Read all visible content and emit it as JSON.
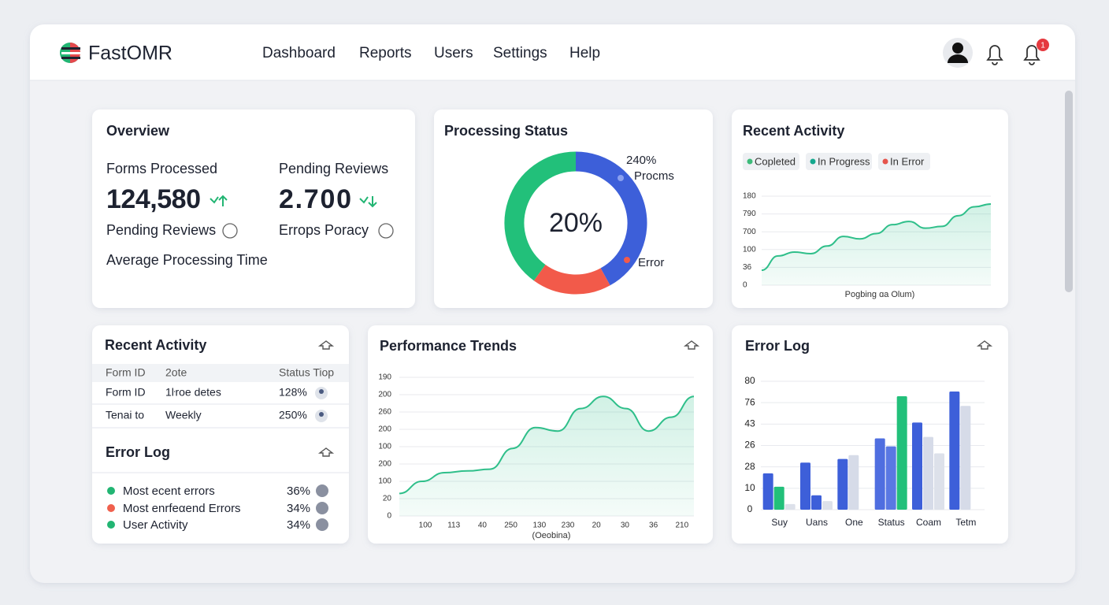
{
  "header": {
    "brand": "FastOMR",
    "nav": [
      "Dashboard",
      "Reports",
      "Users",
      "Settings",
      "Help"
    ],
    "notification_count": "1"
  },
  "overview": {
    "title": "Overview",
    "stats": [
      {
        "label": "Forms Processed",
        "value": "124,580",
        "sub": "Pending Reviews"
      },
      {
        "label": "Pending Reviews",
        "value": "2.700",
        "sub": "Errops Poracy"
      }
    ],
    "footer": "Average Processing Time"
  },
  "processing_status": {
    "title": "Processing Status",
    "center_label": "20%",
    "callouts": [
      "240%",
      "Procms",
      "Error"
    ],
    "chart_data": {
      "type": "donut",
      "values": [
        42,
        18,
        40
      ],
      "colors": [
        "#3d5fd9",
        "#f25a4a",
        "#22c07a"
      ]
    }
  },
  "recent_activity_chart": {
    "title": "Recent Activity",
    "legend": [
      {
        "label": "Copleted",
        "color": "#3dbb7a"
      },
      {
        "label": "In Progress",
        "color": "#14a88e"
      },
      {
        "label": "In Error",
        "color": "#e5534b"
      }
    ],
    "chart_data": {
      "type": "area",
      "color": "#2fbf8a",
      "ylim": [
        0,
        5
      ],
      "yticks": [
        {
          "value": 0,
          "label": "0"
        },
        {
          "value": 1,
          "label": "36"
        },
        {
          "value": 2,
          "label": "100"
        },
        {
          "value": 3,
          "label": "700"
        },
        {
          "value": 4,
          "label": "790"
        },
        {
          "value": 5,
          "label": "180"
        }
      ],
      "x_label": "Pogbing ɑa Olum)",
      "values": [
        0.84,
        1.64,
        1.86,
        1.77,
        2.2,
        2.74,
        2.6,
        2.9,
        3.4,
        3.58,
        3.2,
        3.3,
        3.9,
        4.4,
        4.56
      ]
    }
  },
  "recent_activity_table": {
    "title": "Recent Activity",
    "columns": [
      "Form ID",
      "2ote",
      "Status Tiop"
    ],
    "rows": [
      [
        "Form ID",
        "1ŀroe detes",
        "128%"
      ],
      [
        "Tenai to",
        "Weekly",
        "250%"
      ]
    ]
  },
  "error_summary": {
    "title": "Error Log",
    "items": [
      {
        "label": "Most ecent errors",
        "value": "36%",
        "color": "#22b573"
      },
      {
        "label": "Most enrfeαend Errors",
        "value": "34%",
        "color": "#f0604d"
      },
      {
        "label": "User Activity",
        "value": "34%",
        "color": "#22b573"
      }
    ]
  },
  "performance_trends": {
    "title": "Performance Trends",
    "chart_data": {
      "type": "area",
      "color": "#2fbf8a",
      "ylim": [
        0,
        8
      ],
      "yticks": [
        {
          "value": 0,
          "label": "0"
        },
        {
          "value": 1,
          "label": "20"
        },
        {
          "value": 2,
          "label": "100"
        },
        {
          "value": 3,
          "label": "200"
        },
        {
          "value": 4,
          "label": "100"
        },
        {
          "value": 5,
          "label": "200"
        },
        {
          "value": 6,
          "label": "260"
        },
        {
          "value": 7,
          "label": "200"
        },
        {
          "value": 8,
          "label": "190"
        }
      ],
      "x_labels": [
        "100",
        "113",
        "40",
        "250",
        "130",
        "230",
        "20",
        "30",
        "36",
        "210"
      ],
      "x_label": "(Oeobina)",
      "values": [
        1.3,
        2.0,
        2.5,
        2.6,
        2.7,
        3.9,
        5.1,
        4.9,
        6.2,
        6.9,
        6.2,
        4.9,
        5.7,
        6.9
      ]
    }
  },
  "error_log_chart": {
    "title": "Error Log",
    "chart_data": {
      "type": "bar",
      "categories": [
        "Suy",
        "Uans",
        "One",
        "Status",
        "Coam",
        "Tetm"
      ],
      "ylim": [
        0,
        6
      ],
      "yticks": [
        {
          "value": 0,
          "label": "0"
        },
        {
          "value": 1,
          "label": "10"
        },
        {
          "value": 2,
          "label": "28"
        },
        {
          "value": 3,
          "label": "26"
        },
        {
          "value": 4,
          "label": "43"
        },
        {
          "value": 5,
          "label": "76"
        },
        {
          "value": 6,
          "label": "80"
        }
      ],
      "series": [
        {
          "values": [
            1.7,
            2.2,
            2.37,
            3.33,
            4.07,
            5.52
          ],
          "colors": [
            "#3d5fd9",
            "#3d5fd9",
            "#3d5fd9",
            "#4f6ee0",
            "#3d5fd9",
            "#3d5fd9"
          ]
        },
        {
          "values": [
            1.07,
            0.67,
            2.55,
            2.96,
            3.4,
            4.85
          ],
          "colors": [
            "#22c07a",
            "#3d5fd9",
            "#d6dbe8",
            "#5a78e3",
            "#d6dbe8",
            "#d6dbe8"
          ]
        },
        {
          "values": [
            0.26,
            0.4,
            null,
            5.3,
            2.63,
            null
          ],
          "colors": [
            "#dde1ea",
            "#dde1ea",
            null,
            "#22c07a",
            "#dde1ea",
            null
          ]
        }
      ]
    }
  }
}
